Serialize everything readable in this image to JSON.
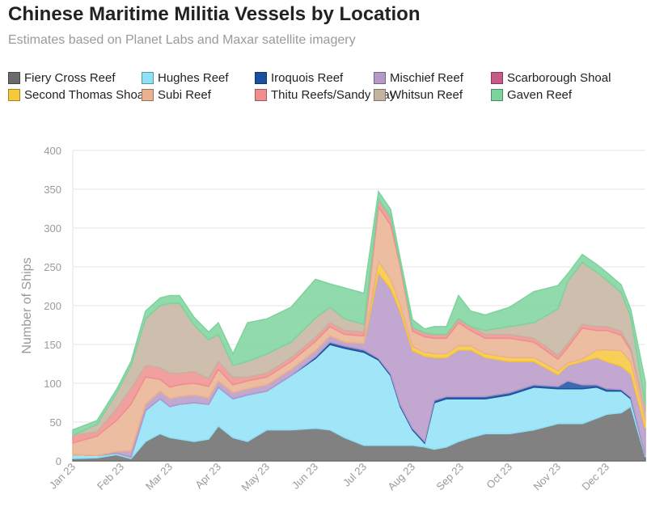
{
  "chart_data": {
    "type": "area",
    "title": "Chinese Maritime Militia Vessels by Location",
    "subtitle": "Estimates based on Planet Labs and Maxar satellite imagery",
    "ylabel": "Number of Ships",
    "xlabel": "",
    "ylim": [
      0,
      400
    ],
    "yticks": [
      0,
      50,
      100,
      150,
      200,
      250,
      300,
      350,
      400
    ],
    "stacked": true,
    "grid": true,
    "legend_position": "top",
    "xticks": [
      {
        "label": "Jan 23",
        "x": 0
      },
      {
        "label": "Feb 23",
        "x": 1
      },
      {
        "label": "Mar 23",
        "x": 2
      },
      {
        "label": "Apr 23",
        "x": 3
      },
      {
        "label": "May 23",
        "x": 4
      },
      {
        "label": "Jun 23",
        "x": 5
      },
      {
        "label": "Jul 23",
        "x": 6
      },
      {
        "label": "Aug 23",
        "x": 7
      },
      {
        "label": "Sep 23",
        "x": 8
      },
      {
        "label": "Oct 23",
        "x": 9
      },
      {
        "label": "Nov 23",
        "x": 10
      },
      {
        "label": "Dec 23",
        "x": 11
      }
    ],
    "x": [
      0,
      0.5,
      0.9,
      1.2,
      1.5,
      1.8,
      2.0,
      2.2,
      2.5,
      2.8,
      3.0,
      3.3,
      3.6,
      4.0,
      4.5,
      5.0,
      5.3,
      5.6,
      6.0,
      6.3,
      6.55,
      6.75,
      7.0,
      7.25,
      7.45,
      7.7,
      7.95,
      8.2,
      8.5,
      9.0,
      9.5,
      10.0,
      10.2,
      10.5,
      10.8,
      11.0,
      11.3,
      11.5,
      11.8
    ],
    "series": [
      {
        "name": "Fiery Cross Reef",
        "color": "#6b6b6b",
        "values": [
          3,
          4,
          8,
          3,
          25,
          35,
          30,
          28,
          25,
          28,
          45,
          30,
          25,
          40,
          40,
          42,
          40,
          30,
          20,
          20,
          20,
          20,
          20,
          18,
          15,
          18,
          25,
          30,
          35,
          35,
          40,
          48,
          48,
          48,
          55,
          60,
          62,
          70,
          5
        ]
      },
      {
        "name": "Hughes Reef",
        "color": "#8fe1f7",
        "values": [
          5,
          3,
          2,
          2,
          40,
          45,
          40,
          45,
          50,
          45,
          50,
          50,
          60,
          50,
          70,
          90,
          110,
          115,
          120,
          110,
          90,
          50,
          20,
          5,
          60,
          62,
          55,
          50,
          45,
          50,
          55,
          45,
          45,
          45,
          40,
          30,
          28,
          10,
          2
        ]
      },
      {
        "name": "Iroquois Reef",
        "color": "#1a50a0",
        "values": [
          0,
          0,
          0,
          0,
          0,
          0,
          0,
          0,
          0,
          0,
          0,
          0,
          0,
          0,
          0,
          2,
          3,
          3,
          3,
          2,
          2,
          2,
          2,
          2,
          3,
          3,
          3,
          3,
          3,
          3,
          3,
          3,
          10,
          5,
          3,
          3,
          2,
          2,
          0
        ]
      },
      {
        "name": "Mischief Reef",
        "color": "#b799c9",
        "values": [
          0,
          0,
          2,
          8,
          8,
          10,
          10,
          10,
          10,
          8,
          8,
          8,
          8,
          8,
          8,
          8,
          8,
          5,
          8,
          110,
          110,
          120,
          100,
          110,
          55,
          50,
          60,
          60,
          50,
          40,
          30,
          15,
          20,
          30,
          35,
          35,
          30,
          30,
          35
        ]
      },
      {
        "name": "Scarborough Shoal",
        "color": "#c65b8a",
        "values": [
          0,
          0,
          0,
          0,
          0,
          0,
          0,
          0,
          0,
          0,
          0,
          0,
          0,
          0,
          0,
          0,
          0,
          0,
          0,
          0,
          0,
          0,
          0,
          0,
          0,
          0,
          0,
          0,
          0,
          0,
          0,
          0,
          0,
          0,
          0,
          0,
          0,
          0,
          0
        ]
      },
      {
        "name": "Second Thomas Shoal",
        "color": "#f7c83a",
        "values": [
          0,
          0,
          0,
          0,
          0,
          0,
          0,
          0,
          0,
          0,
          0,
          0,
          0,
          0,
          0,
          0,
          0,
          0,
          0,
          15,
          12,
          8,
          5,
          5,
          5,
          5,
          5,
          5,
          5,
          5,
          5,
          5,
          3,
          3,
          10,
          15,
          20,
          15,
          10
        ]
      },
      {
        "name": "Subi Reef",
        "color": "#e9b18f",
        "values": [
          15,
          25,
          40,
          60,
          35,
          15,
          15,
          15,
          15,
          15,
          15,
          10,
          10,
          10,
          10,
          12,
          12,
          10,
          10,
          70,
          70,
          50,
          20,
          20,
          20,
          20,
          30,
          20,
          20,
          25,
          20,
          15,
          20,
          40,
          25,
          25,
          20,
          15,
          10
        ]
      },
      {
        "name": "Thitu Reefs/Sandy Cay",
        "color": "#f08e8e",
        "values": [
          10,
          5,
          15,
          20,
          15,
          15,
          18,
          15,
          15,
          10,
          10,
          10,
          5,
          5,
          5,
          5,
          5,
          5,
          5,
          10,
          10,
          5,
          5,
          5,
          5,
          5,
          5,
          5,
          5,
          5,
          5,
          5,
          5,
          5,
          5,
          5,
          5,
          3,
          0
        ]
      },
      {
        "name": "Whitsun Reef",
        "color": "#c4b39f",
        "values": [
          0,
          10,
          20,
          30,
          60,
          80,
          90,
          90,
          60,
          50,
          35,
          15,
          20,
          25,
          20,
          25,
          20,
          15,
          10,
          0,
          0,
          0,
          0,
          0,
          0,
          0,
          0,
          0,
          5,
          10,
          20,
          60,
          80,
          80,
          70,
          60,
          50,
          40,
          10
        ]
      },
      {
        "name": "Gaven Reef",
        "color": "#7dd39c",
        "values": [
          7,
          5,
          5,
          5,
          10,
          10,
          10,
          10,
          10,
          10,
          15,
          15,
          50,
          45,
          45,
          50,
          30,
          40,
          40,
          10,
          10,
          5,
          10,
          5,
          10,
          10,
          30,
          20,
          20,
          25,
          40,
          30,
          10,
          10,
          10,
          10,
          10,
          10,
          30
        ]
      }
    ]
  }
}
